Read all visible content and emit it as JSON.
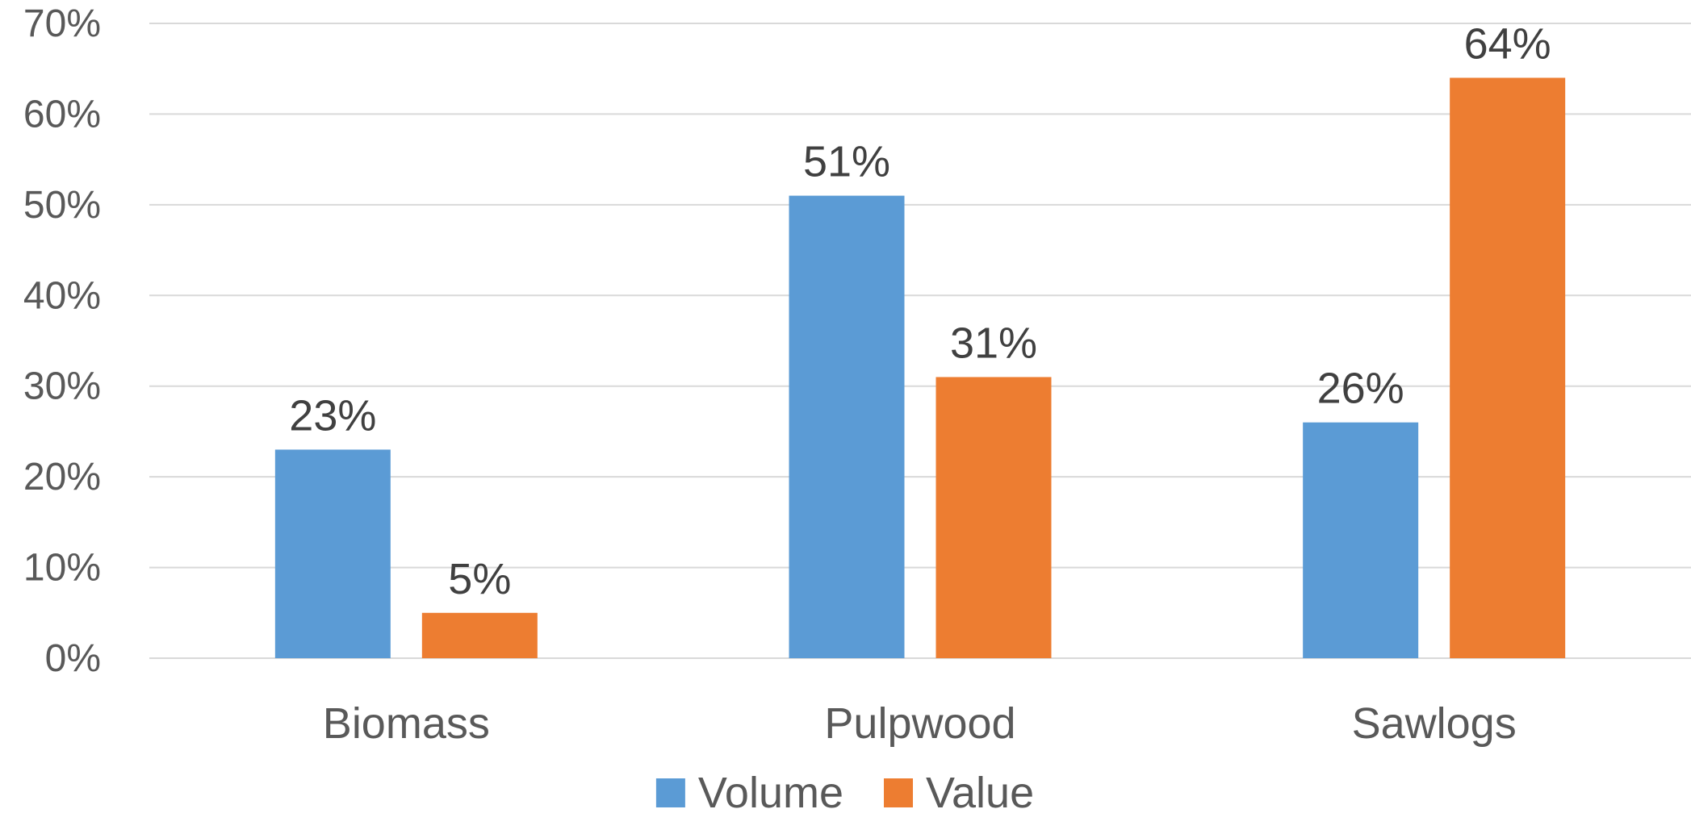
{
  "chart_data": {
    "type": "bar",
    "title": "",
    "xlabel": "",
    "ylabel": "",
    "categories": [
      "Biomass",
      "Pulpwood",
      "Sawlogs"
    ],
    "series": [
      {
        "name": "Volume",
        "color": "#5B9BD5",
        "values": [
          23,
          51,
          26
        ],
        "labels": [
          "23%",
          "51%",
          "26%"
        ]
      },
      {
        "name": "Value",
        "color": "#ED7D31",
        "values": [
          5,
          31,
          64
        ],
        "labels": [
          "5%",
          "31%",
          "64%"
        ]
      }
    ],
    "ylim": [
      0,
      70
    ],
    "yticks": [
      "0%",
      "10%",
      "20%",
      "30%",
      "40%",
      "50%",
      "60%",
      "70%"
    ],
    "grid": true,
    "legend_position": "bottom",
    "colors": {
      "gridline": "#D9D9D9",
      "axis": "#D9D9D9",
      "text": "#595959",
      "label": "#404040"
    }
  }
}
